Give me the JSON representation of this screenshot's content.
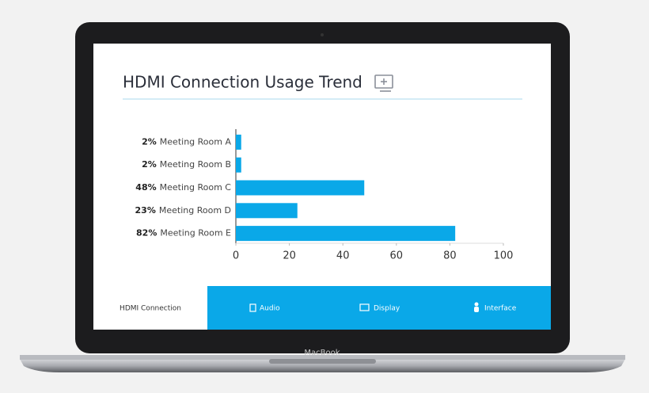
{
  "chart_data": {
    "type": "bar",
    "orientation": "horizontal",
    "title": "HDMI Connection Usage Trend",
    "categories": [
      "Meeting Room A",
      "Meeting Room B",
      "Meeting Room C",
      "Meeting Room D",
      "Meeting Room E"
    ],
    "values": [
      2,
      2,
      48,
      23,
      82
    ],
    "value_labels": [
      "2%",
      "2%",
      "48%",
      "23%",
      "82%"
    ],
    "color": "#0aa8e8",
    "xlim": [
      0,
      100
    ],
    "xticks": [
      0,
      20,
      40,
      60,
      80,
      100
    ],
    "grid": false
  },
  "tabs": [
    "HDMI Connection",
    "Audio",
    "Display",
    "Interface"
  ],
  "device_label": "MacBook"
}
